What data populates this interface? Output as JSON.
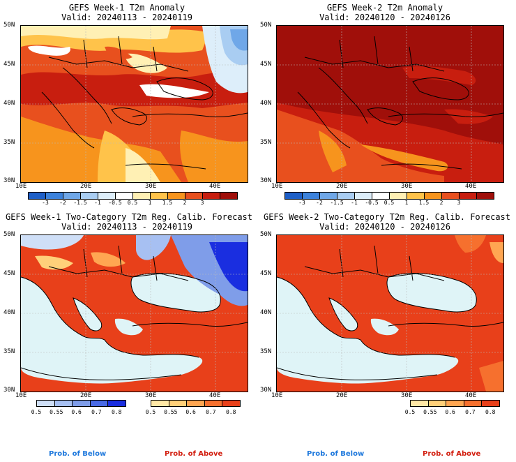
{
  "panels": [
    {
      "id": "p1",
      "title": "GEFS Week-1 T2m Anomaly",
      "valid": "Valid: 20240113 - 20240119"
    },
    {
      "id": "p2",
      "title": "GEFS Week-2 T2m Anomaly",
      "valid": "Valid: 20240120 - 20240126"
    },
    {
      "id": "p3",
      "title": "GEFS Week-1 Two-Category T2m Reg. Calib. Forecast",
      "valid": "Valid: 20240113 - 20240119"
    },
    {
      "id": "p4",
      "title": "GEFS Week-2 Two-Category T2m Reg. Calib. Forecast",
      "valid": "Valid: 20240120 - 20240126"
    }
  ],
  "axes": {
    "lat_labels": [
      "50N",
      "45N",
      "40N",
      "35N",
      "30N"
    ],
    "lon_labels": [
      "10E",
      "20E",
      "30E",
      "40E"
    ]
  },
  "anomaly_colorbar": {
    "labels": [
      "-3",
      "-2",
      "-1.5",
      "-1",
      "-0.5",
      "0.5",
      "1",
      "1.5",
      "2",
      "3"
    ],
    "colors": [
      "#1e5fc8",
      "#3c82dc",
      "#6fa7e8",
      "#a9cdf2",
      "#ddeefa",
      "#ffffff",
      "#fff0b4",
      "#ffc34a",
      "#f7941d",
      "#e8501e",
      "#c81e0f",
      "#a00f0a"
    ]
  },
  "prob_below_colorbar": {
    "labels": [
      "0.5",
      "0.55",
      "0.6",
      "0.7",
      "0.8"
    ],
    "colors": [
      "#cfdff7",
      "#a7c0f2",
      "#7f9de9",
      "#4a6be6",
      "#1a2ee0"
    ]
  },
  "prob_above_colorbar": {
    "labels": [
      "0.5",
      "0.55",
      "0.6",
      "0.7",
      "0.8"
    ],
    "colors": [
      "#ffe8a6",
      "#ffd07a",
      "#ffa652",
      "#f6702e",
      "#e8401a"
    ]
  },
  "legend": {
    "below": "Prob. of Below",
    "above": "Prob. of Above"
  },
  "colors": {
    "sea": "#dff4f7",
    "coast": "#000000",
    "grid": "#bbbbbb"
  }
}
